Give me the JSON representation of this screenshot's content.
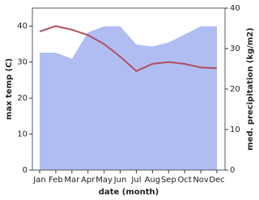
{
  "chart_data": {
    "type": "line-area",
    "x_label": "date (month)",
    "y_label": "max temp (C)",
    "y2_label": "med. precipitation (kg/m2)",
    "categories": [
      "Jan",
      "Feb",
      "Mar",
      "Apr",
      "May",
      "Jun",
      "Jul",
      "Aug",
      "Sep",
      "Oct",
      "Nov",
      "Dec"
    ],
    "series": [
      {
        "name": "max temp",
        "color": "#b24f5e",
        "values": [
          38.5,
          40,
          39,
          37.5,
          35,
          31.5,
          27.5,
          29.5,
          30,
          29.5,
          28.5,
          28.3
        ]
      },
      {
        "name": "med. precipitation",
        "color": "#b0bdf2",
        "axis": "y2",
        "values": [
          29,
          29,
          27.5,
          34,
          35.5,
          35.5,
          31,
          30.5,
          31.5,
          33.5,
          35.5,
          35.5
        ]
      }
    ],
    "ylim": [
      0,
      45
    ],
    "yticks": [
      0,
      10,
      20,
      30,
      40
    ],
    "y2lim": [
      0,
      40
    ],
    "y2ticks": [
      0,
      10,
      20,
      30,
      40
    ]
  }
}
